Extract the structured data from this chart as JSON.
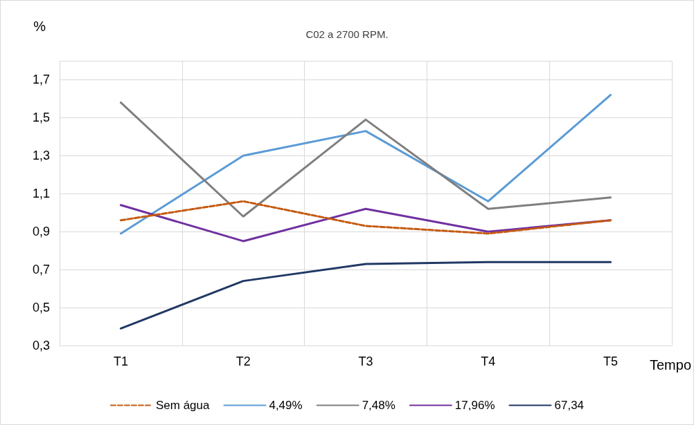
{
  "chart_data": {
    "type": "line",
    "title": "C02 a 2700 RPM.",
    "ylabel": "%",
    "xlabel": "Tempo",
    "categories": [
      "T1",
      "T2",
      "T3",
      "T4",
      "T5"
    ],
    "series": [
      {
        "name": "Sem água",
        "color": "#c55a11",
        "line_style": "dashed",
        "values": [
          0.96,
          1.06,
          0.93,
          0.89,
          0.96
        ]
      },
      {
        "name": "4,49%",
        "color": "#5b9bd5",
        "values": [
          0.89,
          1.3,
          1.43,
          1.06,
          1.62
        ]
      },
      {
        "name": "7,48%",
        "color": "#7f7f7f",
        "values": [
          1.58,
          0.98,
          1.49,
          1.02,
          1.08
        ]
      },
      {
        "name": "17,96%",
        "color": "#7030a0",
        "values": [
          1.04,
          0.85,
          1.02,
          0.9,
          0.96
        ]
      },
      {
        "name": "67,34",
        "color": "#203864",
        "values": [
          0.39,
          0.64,
          0.73,
          0.74,
          0.74
        ]
      }
    ],
    "ylim": [
      0.3,
      1.8
    ],
    "yticks": [
      {
        "value": 0.3,
        "label": "0,3"
      },
      {
        "value": 0.5,
        "label": "0,5"
      },
      {
        "value": 0.7,
        "label": "0,7"
      },
      {
        "value": 0.9,
        "label": "0,9"
      },
      {
        "value": 1.1,
        "label": "1,1"
      },
      {
        "value": 1.3,
        "label": "1,3"
      },
      {
        "value": 1.5,
        "label": "1,5"
      },
      {
        "value": 1.7,
        "label": "1,7"
      },
      {
        "value": 1.8,
        "label": null
      }
    ],
    "grid": true,
    "legend": "bottom",
    "marker": "none",
    "line_style": "solid"
  }
}
